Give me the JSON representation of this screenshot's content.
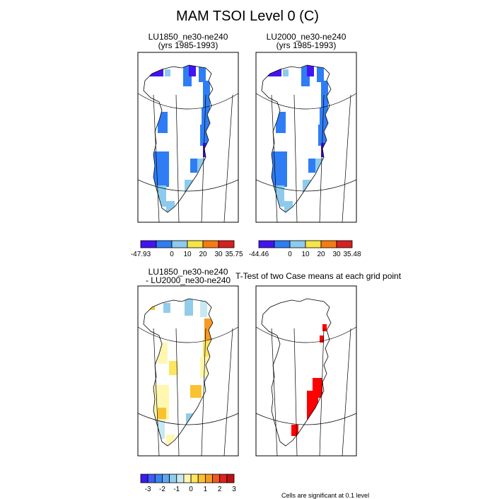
{
  "figure": {
    "title": "MAM TSOI Level 0 (C)"
  },
  "panels": [
    {
      "id": "lu1850",
      "title_lines": [
        "LU1850_ne30-ne240",
        "(yrs 1985-1993)"
      ]
    },
    {
      "id": "lu2000",
      "title_lines": [
        "LU2000_ne30-ne240",
        "(yrs 1985-1993)"
      ]
    },
    {
      "id": "diff",
      "title_lines": [
        "LU1850_ne30-ne240",
        "- LU2000_ne30-ne240"
      ]
    },
    {
      "id": "ttest",
      "title_lines": [
        "T-Test of two Case means at each grid point"
      ]
    }
  ],
  "colorbars": {
    "abs1": {
      "colors": [
        "#4414f0",
        "#2f7df5",
        "#8ccbee",
        "#f7e545",
        "#f77c10",
        "#d42222"
      ],
      "labels": [
        "-47.93",
        "0",
        "10",
        "20",
        "30",
        "35.75"
      ],
      "label_edges": [
        0,
        2,
        3,
        4,
        5,
        6
      ]
    },
    "abs2": {
      "colors": [
        "#4414f0",
        "#2f7df5",
        "#8ccbee",
        "#f7e545",
        "#f77c10",
        "#d42222"
      ],
      "labels": [
        "-44.46",
        "0",
        "10",
        "20",
        "30",
        "35.48"
      ],
      "label_edges": [
        0,
        2,
        3,
        4,
        5,
        6
      ]
    },
    "diff": {
      "colors": [
        "#3a1cf0",
        "#3f5df2",
        "#3c82f0",
        "#5ea7ee",
        "#93cbea",
        "#c8e8f2",
        "#fff7b0",
        "#fde560",
        "#f9c22e",
        "#f79a22",
        "#ef5a1e",
        "#de2222",
        "#bb1111"
      ],
      "labels": [
        "-3",
        "-2",
        "-1",
        "0",
        "1",
        "2",
        "3"
      ],
      "label_edges": [
        1,
        3,
        5,
        7,
        9,
        11,
        13
      ]
    }
  },
  "ttest_note": "Cells are significant at 0.1 level"
}
